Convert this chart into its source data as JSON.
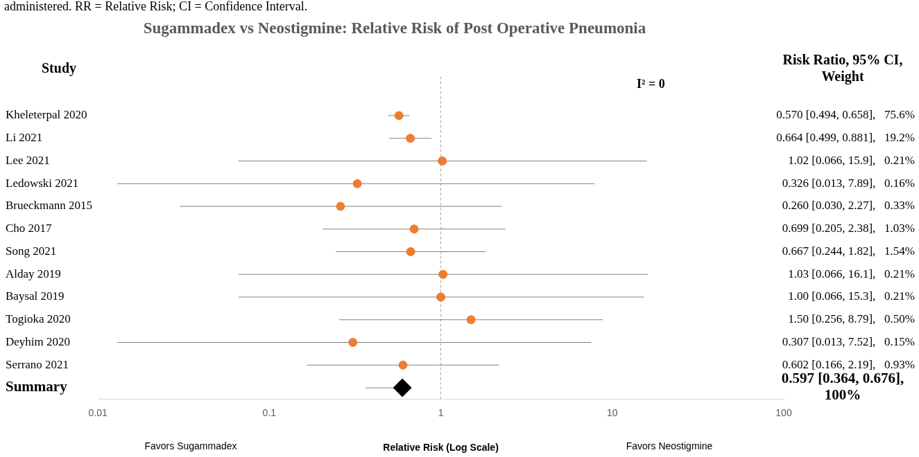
{
  "chart_data": {
    "type": "scatter",
    "orientation": "horizontal",
    "title": "Sugammadex vs Neostigmine: Relative Risk of Post Operative Pneumonia",
    "ylabel": "Study",
    "xlabel": "Relative Risk (Log Scale)",
    "annotations": [
      "administered. RR = Relative Risk; CI = Confidence Interval.",
      "I² = 0",
      "Favors Sugammadex",
      "Favors Neostigmine",
      "Risk Ratio, 95% CI, Weight",
      "0.597 [0.364, 0.676], 100%"
    ],
    "categories": [
      "Kheleterpal 2020",
      "Li 2021",
      "Lee 2021",
      "Ledowski 2021",
      "Brueckmann 2015",
      "Cho 2017",
      "Song 2021",
      "Alday 2019",
      "Baysal 2019",
      "Togioka 2020",
      "Deyhim 2020",
      "Serrano 2021",
      "Summary"
    ],
    "series": [
      {
        "color": "#ed7d31",
        "marker": "circle",
        "values": [
          0.57,
          0.664,
          1.02,
          0.326,
          0.26,
          0.699,
          0.667,
          1.03,
          1.0,
          1.5,
          0.307,
          0.602,
          null
        ],
        "errors": [
          [
            0.494,
            0.658
          ],
          [
            0.499,
            0.881
          ],
          [
            0.066,
            15.9
          ],
          [
            0.013,
            7.89
          ],
          [
            0.03,
            2.27
          ],
          [
            0.205,
            2.38
          ],
          [
            0.244,
            1.82
          ],
          [
            0.066,
            16.1
          ],
          [
            0.066,
            15.3
          ],
          [
            0.256,
            8.79
          ],
          [
            0.013,
            7.52
          ],
          [
            0.166,
            2.19
          ],
          null
        ],
        "value_labels": [
          "0.570 [0.494, 0.658],   75.6%",
          "0.664 [0.499, 0.881],   19.2%",
          "1.02 [0.066, 15.9],   0.21%",
          "0.326 [0.013, 7.89],   0.16%",
          "0.260 [0.030, 2.27],   0.33%",
          "0.699 [0.205, 2.38],   1.03%",
          "0.667 [0.244, 1.82],   1.54%",
          "1.03 [0.066, 16.1],   0.21%",
          "1.00 [0.066, 15.3],   0.21%",
          "1.50 [0.256, 8.79],   0.50%",
          "0.307 [0.013, 7.52],   0.15%",
          "0.602 [0.166, 2.19],   0.93%",
          null
        ]
      },
      {
        "color": "#000000",
        "marker": "diamond",
        "values": [
          null,
          null,
          null,
          null,
          null,
          null,
          null,
          null,
          null,
          null,
          null,
          null,
          0.597
        ],
        "errors": [
          null,
          null,
          null,
          null,
          null,
          null,
          null,
          null,
          null,
          null,
          null,
          null,
          [
            0.364,
            0.676
          ]
        ]
      }
    ],
    "log": "x",
    "xlim": [
      0.01,
      100
    ],
    "xticks": [
      0.01,
      0.1,
      1,
      10,
      100
    ],
    "grid": false,
    "legend": false,
    "ref_lines": [
      {
        "axis": "x",
        "value": 1,
        "color": "#a6a6a6",
        "line_style": "dashed"
      }
    ]
  }
}
